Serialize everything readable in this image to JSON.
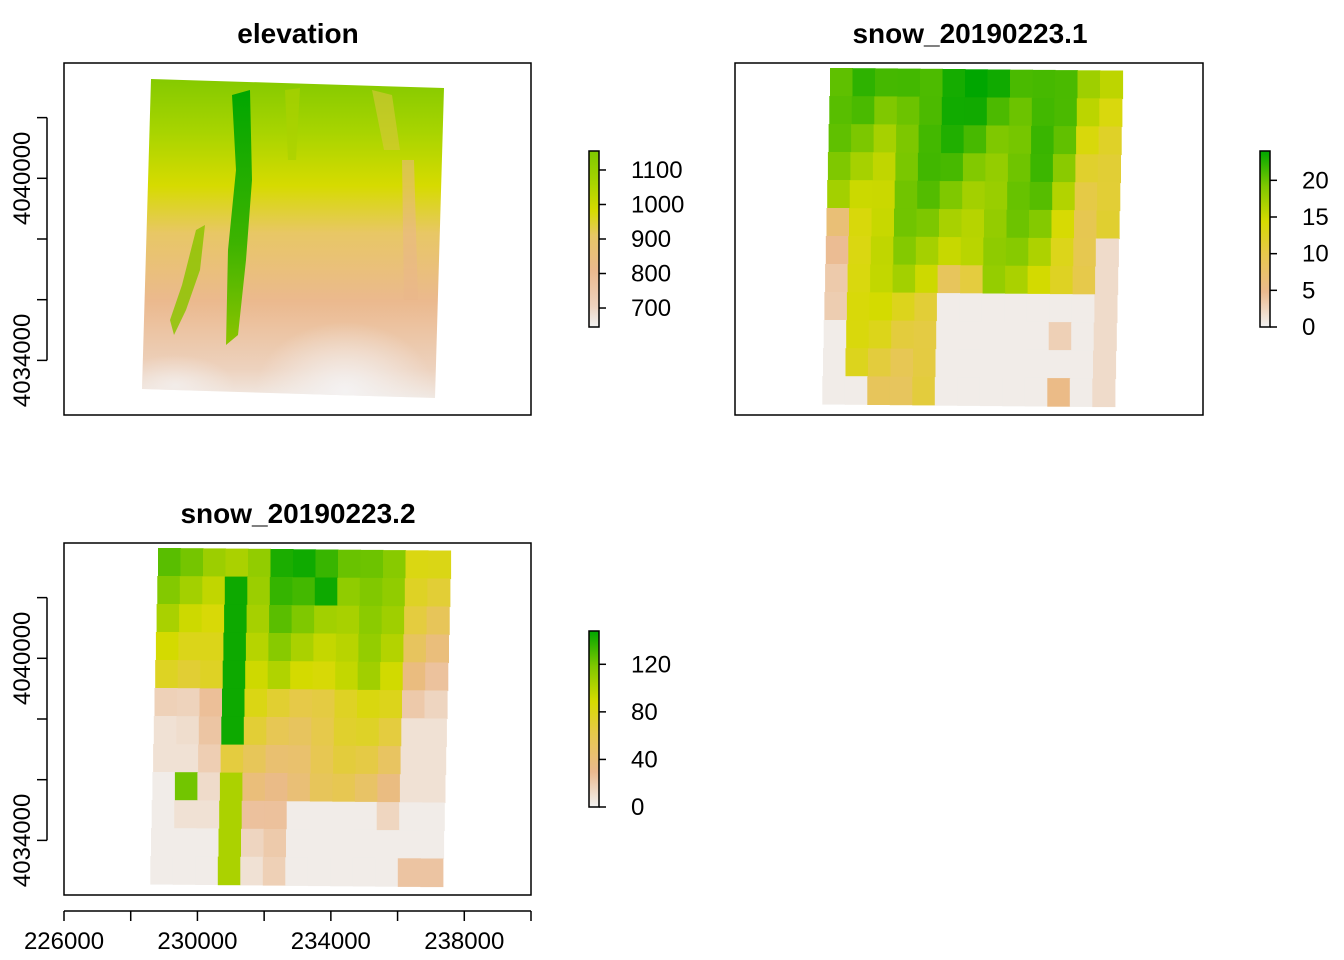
{
  "chart_data": [
    {
      "type": "heatmap",
      "title": "elevation",
      "xlim": [
        226000,
        240000
      ],
      "ylim": [
        4032200,
        4043800
      ],
      "y_ticks": [
        4034000,
        4036000,
        4038000,
        4040000,
        4042000
      ],
      "y_tick_labels": [
        "4034000",
        "",
        "",
        "4040000",
        ""
      ],
      "legend": {
        "ticks": [
          700,
          800,
          900,
          1000,
          1100
        ],
        "tick_labels": [
          "700",
          "800",
          "900",
          "1000",
          "1100"
        ],
        "range": [
          645,
          1155
        ]
      },
      "colors": [
        "#F2F2F2",
        "#EBB98E",
        "#E6C94A",
        "#D6DB00",
        "#7FC800",
        "#00A600"
      ]
    },
    {
      "type": "heatmap",
      "title": "snow_20190223.1",
      "xlim": [
        226000,
        240000
      ],
      "ylim": [
        4032200,
        4043800
      ],
      "legend": {
        "ticks": [
          0,
          5,
          10,
          15,
          20
        ],
        "tick_labels": [
          "0",
          "5",
          "10",
          "15",
          "20"
        ],
        "range": [
          0,
          24
        ]
      },
      "colors": [
        "#F2F2F2",
        "#EBB98E",
        "#E6C94A",
        "#D6DB00",
        "#7FC800",
        "#00A600"
      ]
    },
    {
      "type": "heatmap",
      "title": "snow_20190223.2",
      "xlim": [
        226000,
        240000
      ],
      "ylim": [
        4032200,
        4043800
      ],
      "x_ticks": [
        226000,
        228000,
        230000,
        232000,
        234000,
        236000,
        238000,
        240000
      ],
      "x_tick_labels": [
        "226000",
        "",
        "230000",
        "",
        "234000",
        "",
        "238000",
        ""
      ],
      "y_ticks": [
        4034000,
        4036000,
        4038000,
        4040000,
        4042000
      ],
      "y_tick_labels": [
        "4034000",
        "",
        "",
        "4040000",
        ""
      ],
      "legend": {
        "ticks": [
          0,
          40,
          80,
          120
        ],
        "tick_labels": [
          "0",
          "40",
          "80",
          "120"
        ],
        "range": [
          0,
          148
        ]
      },
      "colors": [
        "#F2F2F2",
        "#EBB98E",
        "#E6C94A",
        "#D6DB00",
        "#7FC800",
        "#00A600"
      ]
    }
  ]
}
